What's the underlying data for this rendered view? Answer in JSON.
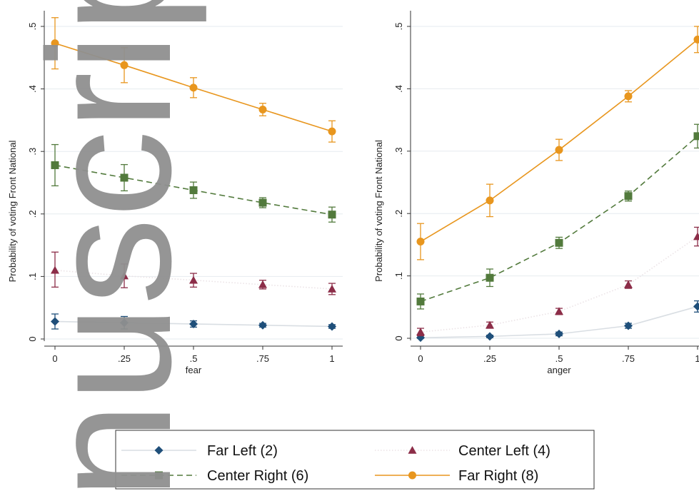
{
  "colors": {
    "far_left": "#1f4f7a",
    "center_left": "#8c2d48",
    "center_right": "#527a3c",
    "far_right": "#e8961e",
    "grid": "#e6ebef",
    "watermark": "#8f8f8f"
  },
  "watermark": {
    "text": "nuscript"
  },
  "legend": {
    "position": "bottom",
    "items": [
      {
        "label": "Far Left (2)",
        "series": "far_left",
        "marker": "diamond",
        "line": "solid"
      },
      {
        "label": "Center Left (4)",
        "series": "center_left",
        "marker": "triangle",
        "line": "dotted"
      },
      {
        "label": "Center Right (6)",
        "series": "center_right",
        "marker": "square",
        "line": "dashed"
      },
      {
        "label": "Far Right (8)",
        "series": "far_right",
        "marker": "circle",
        "line": "solid"
      }
    ]
  },
  "chart_data": [
    {
      "type": "line",
      "xlabel": "fear",
      "ylabel": "Probability of voting Front National",
      "x": [
        0,
        0.25,
        0.5,
        0.75,
        1
      ],
      "x_tick_labels": [
        "0",
        ".25",
        ".5",
        ".75",
        "1"
      ],
      "y_ticks": [
        0,
        0.1,
        0.2,
        0.3,
        0.4,
        0.5
      ],
      "y_tick_labels": [
        "0",
        ".1",
        ".2",
        ".3",
        ".4",
        ".5"
      ],
      "xlim": [
        0,
        1
      ],
      "ylim": [
        0,
        0.5
      ],
      "grid": "horizontal",
      "series": [
        {
          "name": "Far Left (2)",
          "key": "far_left",
          "values": [
            0.028,
            0.026,
            0.024,
            0.022,
            0.02
          ],
          "ci_low": [
            0.016,
            0.016,
            0.019,
            0.019,
            0.017
          ],
          "ci_high": [
            0.04,
            0.036,
            0.029,
            0.025,
            0.023
          ]
        },
        {
          "name": "Center Left (4)",
          "key": "center_left",
          "values": [
            0.11,
            0.101,
            0.094,
            0.087,
            0.08
          ],
          "ci_low": [
            0.083,
            0.082,
            0.083,
            0.08,
            0.071
          ],
          "ci_high": [
            0.139,
            0.12,
            0.105,
            0.094,
            0.089
          ]
        },
        {
          "name": "Center Right (6)",
          "key": "center_right",
          "values": [
            0.278,
            0.258,
            0.238,
            0.218,
            0.199
          ],
          "ci_low": [
            0.245,
            0.237,
            0.225,
            0.21,
            0.187
          ],
          "ci_high": [
            0.311,
            0.279,
            0.251,
            0.226,
            0.211
          ]
        },
        {
          "name": "Far Right (8)",
          "key": "far_right",
          "values": [
            0.473,
            0.438,
            0.402,
            0.367,
            0.332
          ],
          "ci_low": [
            0.432,
            0.41,
            0.386,
            0.357,
            0.315
          ],
          "ci_high": [
            0.514,
            0.466,
            0.418,
            0.377,
            0.349
          ]
        }
      ]
    },
    {
      "type": "line",
      "xlabel": "anger",
      "ylabel": "Probability of voting Front National",
      "x": [
        0,
        0.25,
        0.5,
        0.75,
        1
      ],
      "x_tick_labels": [
        "0",
        ".25",
        ".5",
        ".75",
        "1"
      ],
      "y_ticks": [
        0,
        0.1,
        0.2,
        0.3,
        0.4,
        0.5
      ],
      "y_tick_labels": [
        "0",
        ".1",
        ".2",
        ".3",
        ".4",
        ".5"
      ],
      "xlim": [
        0,
        1
      ],
      "ylim": [
        0,
        0.5
      ],
      "grid": "horizontal",
      "series": [
        {
          "name": "Far Left (2)",
          "key": "far_left",
          "values": [
            0.001,
            0.003,
            0.007,
            0.02,
            0.051
          ],
          "ci_low": [
            0.0,
            0.001,
            0.004,
            0.016,
            0.042
          ],
          "ci_high": [
            0.004,
            0.005,
            0.01,
            0.024,
            0.06
          ]
        },
        {
          "name": "Center Left (4)",
          "key": "center_left",
          "values": [
            0.01,
            0.021,
            0.043,
            0.086,
            0.163
          ],
          "ci_low": [
            0.004,
            0.016,
            0.038,
            0.08,
            0.148
          ],
          "ci_high": [
            0.016,
            0.026,
            0.048,
            0.092,
            0.178
          ]
        },
        {
          "name": "Center Right (6)",
          "key": "center_right",
          "values": [
            0.059,
            0.097,
            0.153,
            0.228,
            0.324
          ],
          "ci_low": [
            0.047,
            0.083,
            0.144,
            0.22,
            0.305
          ],
          "ci_high": [
            0.071,
            0.111,
            0.162,
            0.236,
            0.343
          ]
        },
        {
          "name": "Far Right (8)",
          "key": "far_right",
          "values": [
            0.155,
            0.221,
            0.302,
            0.388,
            0.479
          ],
          "ci_low": [
            0.126,
            0.195,
            0.285,
            0.379,
            0.458
          ],
          "ci_high": [
            0.184,
            0.247,
            0.319,
            0.397,
            0.5
          ]
        }
      ]
    }
  ]
}
